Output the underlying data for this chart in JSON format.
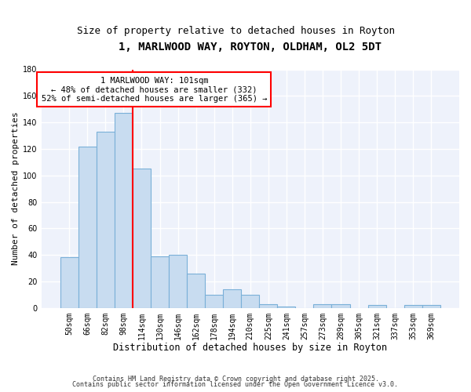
{
  "title": "1, MARLWOOD WAY, ROYTON, OLDHAM, OL2 5DT",
  "subtitle": "Size of property relative to detached houses in Royton",
  "xlabel": "Distribution of detached houses by size in Royton",
  "ylabel": "Number of detached properties",
  "bar_color": "#c8dcf0",
  "bar_edge_color": "#7ab0d8",
  "background_color": "#eef2fb",
  "grid_color": "#ffffff",
  "annotation_title": "1 MARLWOOD WAY: 101sqm",
  "annotation_line1": "← 48% of detached houses are smaller (332)",
  "annotation_line2": "52% of semi-detached houses are larger (365) →",
  "categories": [
    "50sqm",
    "66sqm",
    "82sqm",
    "98sqm",
    "114sqm",
    "130sqm",
    "146sqm",
    "162sqm",
    "178sqm",
    "194sqm",
    "210sqm",
    "225sqm",
    "241sqm",
    "257sqm",
    "273sqm",
    "289sqm",
    "305sqm",
    "321sqm",
    "337sqm",
    "353sqm",
    "369sqm"
  ],
  "values": [
    38,
    122,
    133,
    147,
    105,
    39,
    40,
    26,
    10,
    14,
    10,
    3,
    1,
    0,
    3,
    3,
    0,
    2,
    0,
    2,
    2
  ],
  "ylim": [
    0,
    180
  ],
  "yticks": [
    0,
    20,
    40,
    60,
    80,
    100,
    120,
    140,
    160,
    180
  ],
  "marker_bar_index": 3,
  "footnote1": "Contains HM Land Registry data © Crown copyright and database right 2025.",
  "footnote2": "Contains public sector information licensed under the Open Government Licence v3.0.",
  "title_fontsize": 10,
  "subtitle_fontsize": 9,
  "xlabel_fontsize": 8.5,
  "ylabel_fontsize": 8,
  "tick_fontsize": 7,
  "annotation_fontsize": 7.5,
  "footnote_fontsize": 6
}
